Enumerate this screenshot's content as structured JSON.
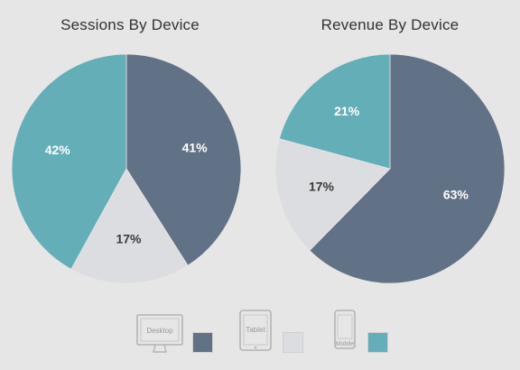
{
  "chart_data": [
    {
      "type": "pie",
      "title": "Sessions By Device",
      "slices": [
        {
          "label": "Desktop",
          "value": 41,
          "display": "41%",
          "color": "#617186",
          "text_color": "#ffffff"
        },
        {
          "label": "Tablet",
          "value": 17,
          "display": "17%",
          "color": "#dcdde0",
          "text_color": "#3a3a3a"
        },
        {
          "label": "Mobile",
          "value": 42,
          "display": "42%",
          "color": "#64aeb8",
          "text_color": "#ffffff"
        }
      ]
    },
    {
      "type": "pie",
      "title": "Revenue By Device",
      "slices": [
        {
          "label": "Desktop",
          "value": 63,
          "display": "63%",
          "color": "#617186",
          "text_color": "#ffffff"
        },
        {
          "label": "Tablet",
          "value": 17,
          "display": "17%",
          "color": "#dcdde0",
          "text_color": "#3a3a3a"
        },
        {
          "label": "Mobile",
          "value": 21,
          "display": "21%",
          "color": "#64aeb8",
          "text_color": "#ffffff"
        }
      ]
    }
  ],
  "legend": [
    {
      "label": "Desktop",
      "icon": "desktop-monitor-icon",
      "color": "#617186"
    },
    {
      "label": "Tablet",
      "icon": "tablet-icon",
      "color": "#dcdde0"
    },
    {
      "label": "Mobile",
      "icon": "mobile-phone-icon",
      "color": "#64aeb8"
    }
  ]
}
